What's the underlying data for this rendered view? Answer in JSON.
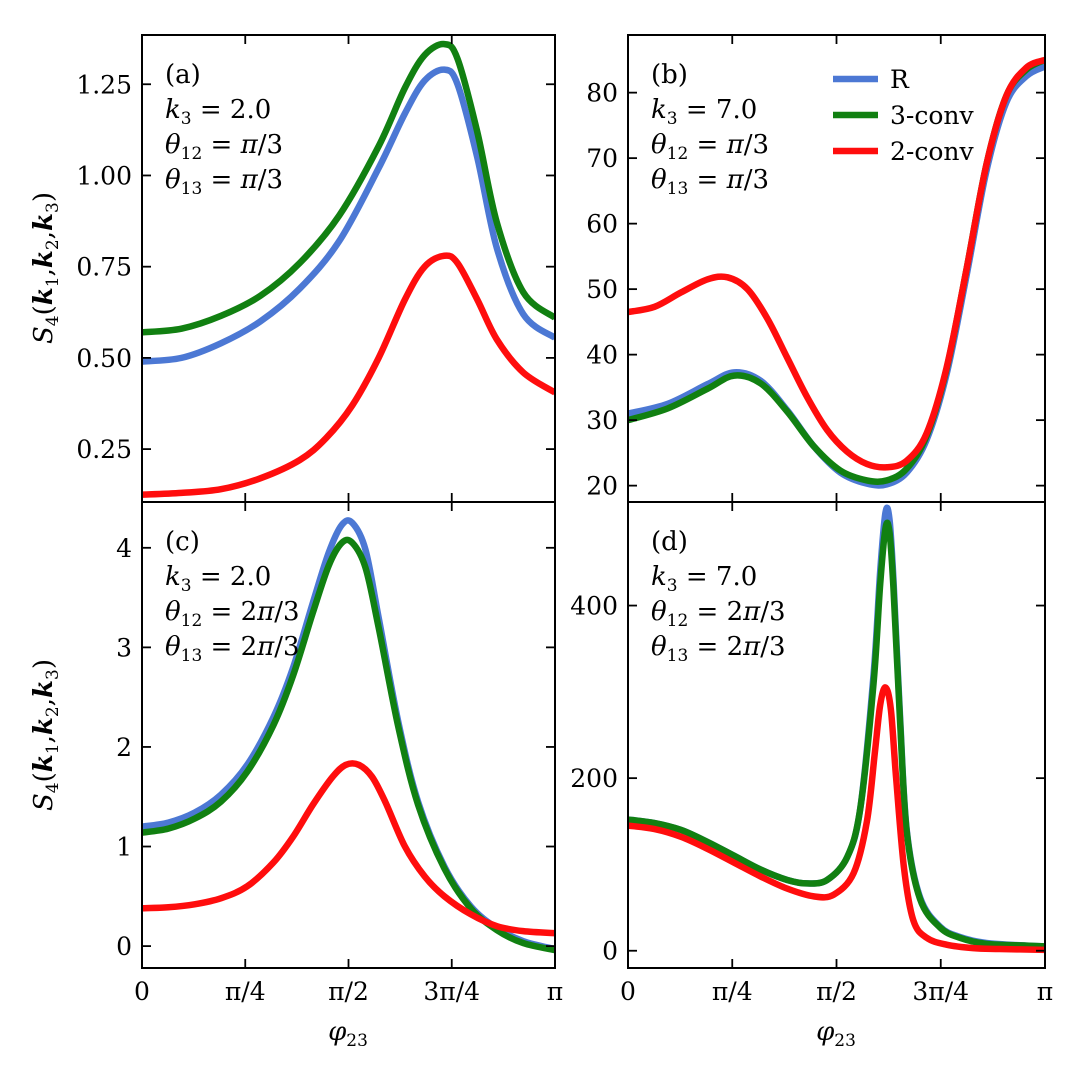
{
  "figure": {
    "ylabel": "S4(k1,k2,k3)",
    "ylabel_parts": {
      "main": "S",
      "sub": "4",
      "args": [
        "k",
        "1",
        "k",
        "2",
        "k",
        "3"
      ]
    },
    "xlabel": "φ23",
    "xlabel_parts": {
      "main": "φ",
      "sub": "23"
    }
  },
  "legend": {
    "entries": [
      {
        "label": "R",
        "color": "#4c78d4"
      },
      {
        "label": "3-conv",
        "color": "#118011"
      },
      {
        "label": "2-conv",
        "color": "#ff0d0d"
      }
    ]
  },
  "chart_data": [
    {
      "type": "line",
      "panel": "(a)",
      "annotations": [
        "(a)",
        "k3 = 2.0",
        "θ12 = π/3",
        "θ13 = π/3"
      ],
      "xlim": [
        0,
        3.14159
      ],
      "ylim": [
        0.105,
        1.385
      ],
      "xtick_values": [
        0,
        0.7854,
        1.5708,
        2.3562,
        3.14159
      ],
      "xtick_labels": [
        "0",
        "π/4",
        "π/2",
        "3π/4",
        "π"
      ],
      "ytick_values": [
        0.25,
        0.5,
        0.75,
        1.0,
        1.25
      ],
      "ytick_labels": [
        "0.25",
        "0.50",
        "0.75",
        "1.00",
        "1.25"
      ],
      "series": [
        {
          "name": "R",
          "x": [
            0,
            0.3,
            0.6,
            0.9,
            1.2,
            1.5,
            1.8,
            2.0,
            2.15,
            2.3,
            2.4,
            2.55,
            2.7,
            2.9,
            3.14159
          ],
          "values": [
            0.49,
            0.5,
            0.54,
            0.6,
            0.69,
            0.82,
            1.02,
            1.17,
            1.26,
            1.29,
            1.25,
            1.05,
            0.8,
            0.62,
            0.555
          ]
        },
        {
          "name": "3-conv",
          "x": [
            0,
            0.3,
            0.6,
            0.9,
            1.2,
            1.5,
            1.8,
            2.0,
            2.15,
            2.3,
            2.4,
            2.55,
            2.7,
            2.9,
            3.14159
          ],
          "values": [
            0.57,
            0.58,
            0.615,
            0.67,
            0.76,
            0.89,
            1.08,
            1.24,
            1.33,
            1.36,
            1.32,
            1.12,
            0.87,
            0.68,
            0.61
          ]
        },
        {
          "name": "2-conv",
          "x": [
            0,
            0.3,
            0.6,
            0.9,
            1.2,
            1.4,
            1.6,
            1.8,
            2.0,
            2.15,
            2.3,
            2.4,
            2.55,
            2.7,
            2.9,
            3.14159
          ],
          "values": [
            0.125,
            0.13,
            0.14,
            0.17,
            0.22,
            0.28,
            0.37,
            0.5,
            0.66,
            0.75,
            0.78,
            0.76,
            0.66,
            0.55,
            0.46,
            0.405
          ]
        }
      ]
    },
    {
      "type": "line",
      "panel": "(b)",
      "annotations": [
        "(b)",
        "k3 = 7.0",
        "θ12 = π/3",
        "θ13 = π/3"
      ],
      "xlim": [
        0,
        3.14159
      ],
      "ylim": [
        17.5,
        88.8
      ],
      "xtick_values": [
        0,
        0.7854,
        1.5708,
        2.3562,
        3.14159
      ],
      "xtick_labels": [
        "0",
        "π/4",
        "π/2",
        "3π/4",
        "π"
      ],
      "ytick_values": [
        20,
        30,
        40,
        50,
        60,
        70,
        80
      ],
      "ytick_labels": [
        "20",
        "30",
        "40",
        "50",
        "60",
        "70",
        "80"
      ],
      "series": [
        {
          "name": "R",
          "x": [
            0,
            0.3,
            0.6,
            0.8,
            1.0,
            1.2,
            1.4,
            1.6,
            1.8,
            1.95,
            2.1,
            2.25,
            2.4,
            2.55,
            2.7,
            2.85,
            3.0,
            3.14159
          ],
          "values": [
            31,
            32.5,
            35.5,
            37.3,
            36,
            31.5,
            26,
            22,
            20.3,
            20.2,
            22,
            27,
            37,
            52,
            68,
            78.5,
            82.5,
            84
          ]
        },
        {
          "name": "3-conv",
          "x": [
            0,
            0.3,
            0.6,
            0.8,
            1.0,
            1.2,
            1.4,
            1.6,
            1.8,
            1.95,
            2.1,
            2.25,
            2.4,
            2.55,
            2.7,
            2.85,
            3.0,
            3.14159
          ],
          "values": [
            30,
            31.8,
            34.8,
            36.8,
            35.6,
            31.3,
            26,
            22.3,
            20.8,
            20.8,
            22.6,
            27.6,
            37.8,
            53,
            69,
            79.5,
            83.5,
            85
          ]
        },
        {
          "name": "2-conv",
          "x": [
            0,
            0.2,
            0.4,
            0.6,
            0.75,
            0.9,
            1.05,
            1.2,
            1.35,
            1.5,
            1.65,
            1.8,
            1.95,
            2.1,
            2.25,
            2.4,
            2.55,
            2.7,
            2.85,
            3.0,
            3.14159
          ],
          "values": [
            46.5,
            47.3,
            49.5,
            51.5,
            51.8,
            50,
            45.5,
            39.5,
            33.5,
            28.5,
            25.2,
            23.3,
            22.8,
            23.8,
            28,
            38,
            53,
            69,
            79.5,
            83.8,
            85
          ]
        }
      ]
    },
    {
      "type": "line",
      "panel": "(c)",
      "annotations": [
        "(c)",
        "k3 = 2.0",
        "θ12 = 2π/3",
        "θ13 = 2π/3"
      ],
      "xlim": [
        0,
        3.14159
      ],
      "ylim": [
        -0.22,
        4.46
      ],
      "xtick_values": [
        0,
        0.7854,
        1.5708,
        2.3562,
        3.14159
      ],
      "xtick_labels": [
        "0",
        "π/4",
        "π/2",
        "3π/4",
        "π"
      ],
      "ytick_values": [
        0,
        1,
        2,
        3,
        4
      ],
      "ytick_labels": [
        "0",
        "1",
        "2",
        "3",
        "4"
      ],
      "series": [
        {
          "name": "R",
          "x": [
            0,
            0.2,
            0.4,
            0.6,
            0.8,
            1.0,
            1.15,
            1.3,
            1.42,
            1.52,
            1.6,
            1.7,
            1.8,
            1.95,
            2.1,
            2.3,
            2.5,
            2.7,
            2.9,
            3.14159
          ],
          "values": [
            1.2,
            1.24,
            1.34,
            1.52,
            1.82,
            2.3,
            2.8,
            3.45,
            3.95,
            4.23,
            4.25,
            3.98,
            3.3,
            2.25,
            1.45,
            0.8,
            0.4,
            0.18,
            0.05,
            -0.03
          ]
        },
        {
          "name": "3-conv",
          "x": [
            0,
            0.2,
            0.4,
            0.6,
            0.8,
            1.0,
            1.15,
            1.3,
            1.42,
            1.52,
            1.6,
            1.7,
            1.8,
            1.95,
            2.1,
            2.3,
            2.5,
            2.7,
            2.9,
            3.14159
          ],
          "values": [
            1.14,
            1.18,
            1.28,
            1.45,
            1.75,
            2.22,
            2.72,
            3.35,
            3.82,
            4.05,
            4.05,
            3.8,
            3.2,
            2.2,
            1.42,
            0.78,
            0.38,
            0.16,
            0.03,
            -0.04
          ]
        },
        {
          "name": "2-conv",
          "x": [
            0,
            0.2,
            0.4,
            0.6,
            0.8,
            1.0,
            1.15,
            1.3,
            1.45,
            1.55,
            1.65,
            1.75,
            1.85,
            2.0,
            2.15,
            2.3,
            2.5,
            2.7,
            2.9,
            3.14159
          ],
          "values": [
            0.38,
            0.39,
            0.42,
            0.48,
            0.6,
            0.84,
            1.1,
            1.42,
            1.7,
            1.82,
            1.82,
            1.7,
            1.45,
            1.0,
            0.7,
            0.5,
            0.32,
            0.2,
            0.15,
            0.13
          ]
        }
      ]
    },
    {
      "type": "line",
      "panel": "(d)",
      "annotations": [
        "(d)",
        "k3 = 7.0",
        "θ12 = 2π/3",
        "θ13 = 2π/3"
      ],
      "xlim": [
        0,
        3.14159
      ],
      "ylim": [
        -20,
        520
      ],
      "xtick_values": [
        0,
        0.7854,
        1.5708,
        2.3562,
        3.14159
      ],
      "xtick_labels": [
        "0",
        "π/4",
        "π/2",
        "3π/4",
        "π"
      ],
      "ytick_values": [
        0,
        200,
        400
      ],
      "ytick_labels": [
        "0",
        "200",
        "400"
      ],
      "series": [
        {
          "name": "R",
          "x": [
            0,
            0.2,
            0.4,
            0.6,
            0.8,
            1.0,
            1.2,
            1.35,
            1.5,
            1.65,
            1.75,
            1.85,
            1.9,
            1.94,
            1.97,
            2.0,
            2.05,
            2.1,
            2.2,
            2.35,
            2.5,
            2.7,
            3.0,
            3.14159
          ],
          "values": [
            152,
            148,
            140,
            126,
            110,
            94,
            82,
            78,
            82,
            108,
            165,
            320,
            440,
            508,
            500,
            430,
            270,
            140,
            62,
            28,
            16,
            9,
            6,
            5
          ]
        },
        {
          "name": "3-conv",
          "x": [
            0,
            0.2,
            0.4,
            0.6,
            0.8,
            1.0,
            1.2,
            1.35,
            1.5,
            1.65,
            1.75,
            1.85,
            1.9,
            1.94,
            1.97,
            2.0,
            2.05,
            2.1,
            2.2,
            2.35,
            2.5,
            2.7,
            3.0,
            3.14159
          ],
          "values": [
            152,
            148,
            140,
            126,
            110,
            94,
            82,
            78,
            82,
            108,
            165,
            310,
            425,
            490,
            485,
            420,
            265,
            138,
            60,
            27,
            15,
            8,
            6,
            5
          ]
        },
        {
          "name": "2-conv",
          "x": [
            0,
            0.2,
            0.4,
            0.6,
            0.8,
            1.0,
            1.2,
            1.4,
            1.55,
            1.7,
            1.8,
            1.86,
            1.9,
            1.94,
            1.98,
            2.02,
            2.08,
            2.15,
            2.25,
            2.4,
            2.6,
            2.8,
            3.14159
          ],
          "values": [
            145,
            141,
            132,
            118,
            102,
            86,
            72,
            63,
            65,
            90,
            150,
            230,
            285,
            305,
            280,
            200,
            95,
            35,
            15,
            7,
            3,
            2,
            1
          ]
        }
      ]
    }
  ]
}
